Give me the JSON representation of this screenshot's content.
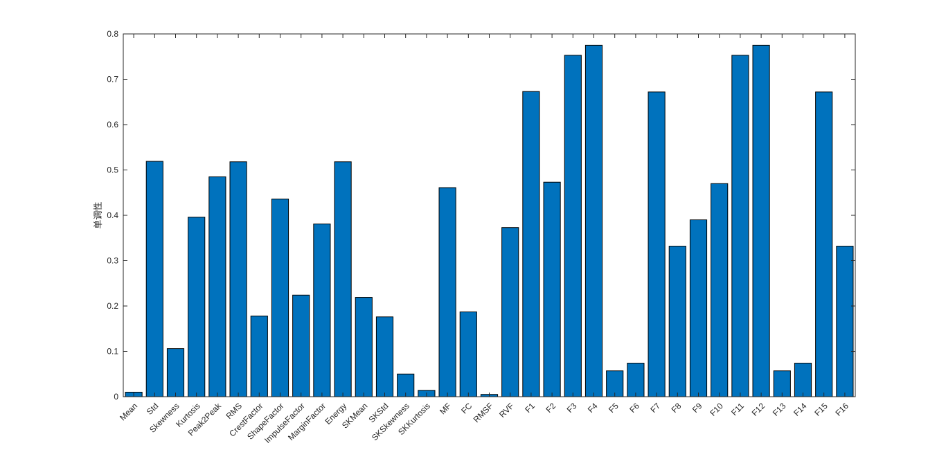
{
  "colors": {
    "bar": "#0072BD",
    "axis": "#262626",
    "background": "#ffffff"
  },
  "chart_data": {
    "type": "bar",
    "title": "",
    "xlabel": "",
    "ylabel": "单调性",
    "ylim": [
      0,
      0.8
    ],
    "yticks": [
      0,
      0.1,
      0.2,
      0.3,
      0.4,
      0.5,
      0.6,
      0.7,
      0.8
    ],
    "ytick_labels": [
      "0",
      "0.1",
      "0.2",
      "0.3",
      "0.4",
      "0.5",
      "0.6",
      "0.7",
      "0.8"
    ],
    "grid": false,
    "box": true,
    "categories": [
      "Mean",
      "Std",
      "Skewness",
      "Kurtosis",
      "Peak2Peak",
      "RMS",
      "CrestFactor",
      "ShapeFactor",
      "ImpulseFactor",
      "MarginFactor",
      "Energy",
      "SKMean",
      "SKStd",
      "SKSkewness",
      "SKKurtosis",
      "MF",
      "FC",
      "RMSF",
      "RVF",
      "F1",
      "F2",
      "F3",
      "F4",
      "F5",
      "F6",
      "F7",
      "F8",
      "F9",
      "F10",
      "F11",
      "F12",
      "F13",
      "F14",
      "F15",
      "F16"
    ],
    "values": [
      0.01,
      0.519,
      0.106,
      0.396,
      0.485,
      0.518,
      0.178,
      0.436,
      0.224,
      0.381,
      0.518,
      0.219,
      0.176,
      0.05,
      0.014,
      0.461,
      0.187,
      0.005,
      0.373,
      0.673,
      0.473,
      0.753,
      0.775,
      0.057,
      0.074,
      0.672,
      0.332,
      0.39,
      0.47,
      0.753,
      0.775,
      0.057,
      0.074,
      0.672,
      0.332
    ]
  }
}
